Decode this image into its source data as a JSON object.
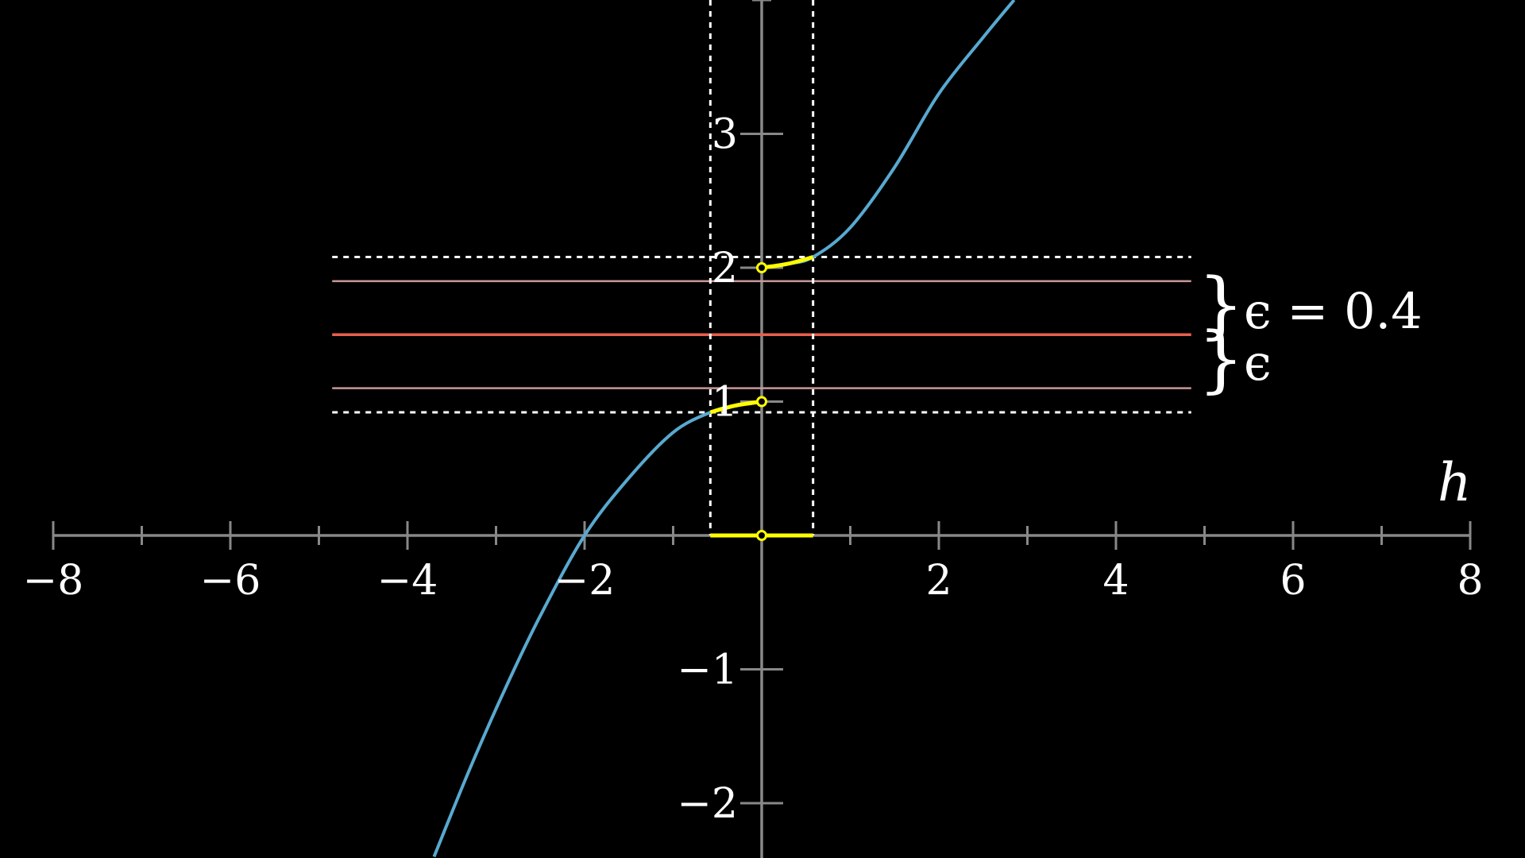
{
  "colors": {
    "background": "#000000",
    "axis": "#888888",
    "curve": "#58a9d0",
    "highlight": "#ffff00",
    "limit_line": "#e8604c",
    "epsilon_line": "#c89898",
    "dashed": "#ffffff",
    "text": "#ffffff"
  },
  "chart_data": {
    "type": "line",
    "xlabel": "h",
    "ylabel": "",
    "xlim": [
      -8.6,
      8.6
    ],
    "ylim": [
      -2.4,
      4.0
    ],
    "x_ticks": [
      -8,
      -7,
      -6,
      -5,
      -4,
      -3,
      -2,
      -1,
      1,
      2,
      3,
      4,
      5,
      6,
      7,
      8
    ],
    "x_tick_labels": [
      {
        "x": -8,
        "label": "−8"
      },
      {
        "x": -6,
        "label": "−6"
      },
      {
        "x": -4,
        "label": "−4"
      },
      {
        "x": -2,
        "label": "−2"
      },
      {
        "x": 2,
        "label": "2"
      },
      {
        "x": 4,
        "label": "4"
      },
      {
        "x": 6,
        "label": "6"
      },
      {
        "x": 8,
        "label": "8"
      }
    ],
    "y_ticks": [
      -2,
      -1,
      1,
      2,
      3
    ],
    "y_tick_labels": [
      {
        "y": 3,
        "label": "3"
      },
      {
        "y": 2,
        "label": "2"
      },
      {
        "y": 1,
        "label": "1"
      },
      {
        "y": -1,
        "label": "−1"
      },
      {
        "y": -2,
        "label": "−2"
      }
    ],
    "series": [
      {
        "x": [
          -3.7,
          -3.3,
          -2.9,
          -2.5,
          -2.0,
          -1.5,
          -1.0,
          -0.58,
          -0.3,
          0.0,
          0.0,
          0.3,
          0.58,
          1.0,
          1.5,
          2.0,
          2.5,
          2.85
        ],
        "y": [
          -2.4,
          -1.75,
          -1.15,
          -0.6,
          0.0,
          0.43,
          0.77,
          0.92,
          0.97,
          1.0,
          2.0,
          2.03,
          2.08,
          2.3,
          2.75,
          3.3,
          3.72,
          4.0
        ]
      }
    ],
    "limit_value": 1.5,
    "epsilon": 0.4,
    "epsilon_band": [
      1.1,
      1.9
    ],
    "horizontal_lines_x_range": [
      -4.85,
      4.85
    ],
    "dashed_y_band": [
      0.92,
      2.08
    ],
    "delta_interval": [
      -0.58,
      0.58
    ],
    "open_points": [
      {
        "x": 0,
        "y": 2
      },
      {
        "x": 0,
        "y": 1
      },
      {
        "x": 0,
        "y": 0
      }
    ],
    "annotations": {
      "upper_label": "ϵ = 0.4",
      "lower_label": "ϵ"
    }
  }
}
